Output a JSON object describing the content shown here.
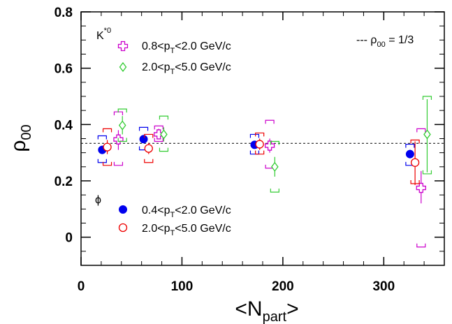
{
  "chart_data": {
    "type": "scatter",
    "xlabel": "<N",
    "xlabel_sub": "part",
    "xlabel_close": ">",
    "ylabel": "ρ",
    "ylabel_sub": "00",
    "xlim": [
      0,
      360
    ],
    "ylim": [
      -0.1,
      0.8
    ],
    "xticks": [
      0,
      100,
      200,
      300
    ],
    "xtick_labels": [
      "0",
      "100",
      "200",
      "300"
    ],
    "yticks": [
      0,
      0.2,
      0.4,
      0.6,
      0.8
    ],
    "ytick_labels": [
      "0",
      "0.2",
      "0.4",
      "0.6",
      "0.8"
    ],
    "reference_line": {
      "y": 0.3333,
      "label": "--- ρ",
      "label_sub": "00",
      "label_rest": " = 1/3"
    },
    "groups": [
      {
        "label": "K",
        "label_sup": "*0"
      },
      {
        "label": "ϕ"
      }
    ],
    "series": [
      {
        "legend_a": "0.8<p",
        "legend_sub": "T",
        "legend_b": "<2.0 GeV/c",
        "marker": "cross",
        "color": "#cc00cc",
        "points": [
          {
            "x": 37,
            "y": 0.347,
            "stat": [
              0.31,
              0.38
            ],
            "sys": [
              0.255,
              0.445
            ]
          },
          {
            "x": 77,
            "y": 0.365,
            "stat": [
              0.35,
              0.385
            ],
            "sys": [
              0.34,
              0.395
            ]
          },
          {
            "x": 187,
            "y": 0.325,
            "stat": [
              0.3,
              0.35
            ],
            "sys": [
              0.245,
              0.415
            ]
          },
          {
            "x": 337,
            "y": 0.175,
            "stat": [
              0.12,
              0.235
            ],
            "sys": [
              -0.035,
              0.385
            ]
          }
        ]
      },
      {
        "legend_a": "2.0<p",
        "legend_sub": "T",
        "legend_b": "<5.0 GeV/c",
        "marker": "diamond",
        "color": "#33cc33",
        "points": [
          {
            "x": 41,
            "y": 0.397,
            "stat": [
              0.365,
              0.43
            ],
            "sys": [
              0.34,
              0.455
            ]
          },
          {
            "x": 82,
            "y": 0.365,
            "stat": [
              0.34,
              0.39
            ],
            "sys": [
              0.305,
              0.43
            ]
          },
          {
            "x": 192,
            "y": 0.25,
            "stat": [
              0.215,
              0.285
            ],
            "sys": [
              0.16,
              0.34
            ]
          },
          {
            "x": 343,
            "y": 0.365,
            "stat": [
              0.23,
              0.49
            ],
            "sys": [
              0.225,
              0.5
            ]
          }
        ]
      },
      {
        "legend_a": "0.4<p",
        "legend_sub": "T",
        "legend_b": "<2.0 GeV/c",
        "marker": "filled-circle",
        "color": "#0000ee",
        "points": [
          {
            "x": 21,
            "y": 0.31,
            "stat": [
              0.295,
              0.325
            ],
            "sys": [
              0.265,
              0.36
            ]
          },
          {
            "x": 62,
            "y": 0.348,
            "stat": [
              0.335,
              0.36
            ],
            "sys": [
              0.31,
              0.39
            ]
          },
          {
            "x": 172,
            "y": 0.328,
            "stat": [
              0.315,
              0.34
            ],
            "sys": [
              0.295,
              0.365
            ]
          },
          {
            "x": 326,
            "y": 0.295,
            "stat": [
              0.28,
              0.31
            ],
            "sys": [
              0.255,
              0.33
            ]
          }
        ]
      },
      {
        "legend_a": "2.0<p",
        "legend_sub": "T",
        "legend_b": "<5.0 GeV/c",
        "marker": "open-circle",
        "color": "#ee0000",
        "points": [
          {
            "x": 26,
            "y": 0.32,
            "stat": [
              0.295,
              0.345
            ],
            "sys": [
              0.255,
              0.385
            ]
          },
          {
            "x": 67,
            "y": 0.315,
            "stat": [
              0.295,
              0.335
            ],
            "sys": [
              0.265,
              0.365
            ]
          },
          {
            "x": 177,
            "y": 0.33,
            "stat": [
              0.31,
              0.35
            ],
            "sys": [
              0.295,
              0.37
            ]
          },
          {
            "x": 331,
            "y": 0.265,
            "stat": [
              0.185,
              0.34
            ],
            "sys": [
              0.19,
              0.345
            ]
          }
        ]
      }
    ]
  }
}
